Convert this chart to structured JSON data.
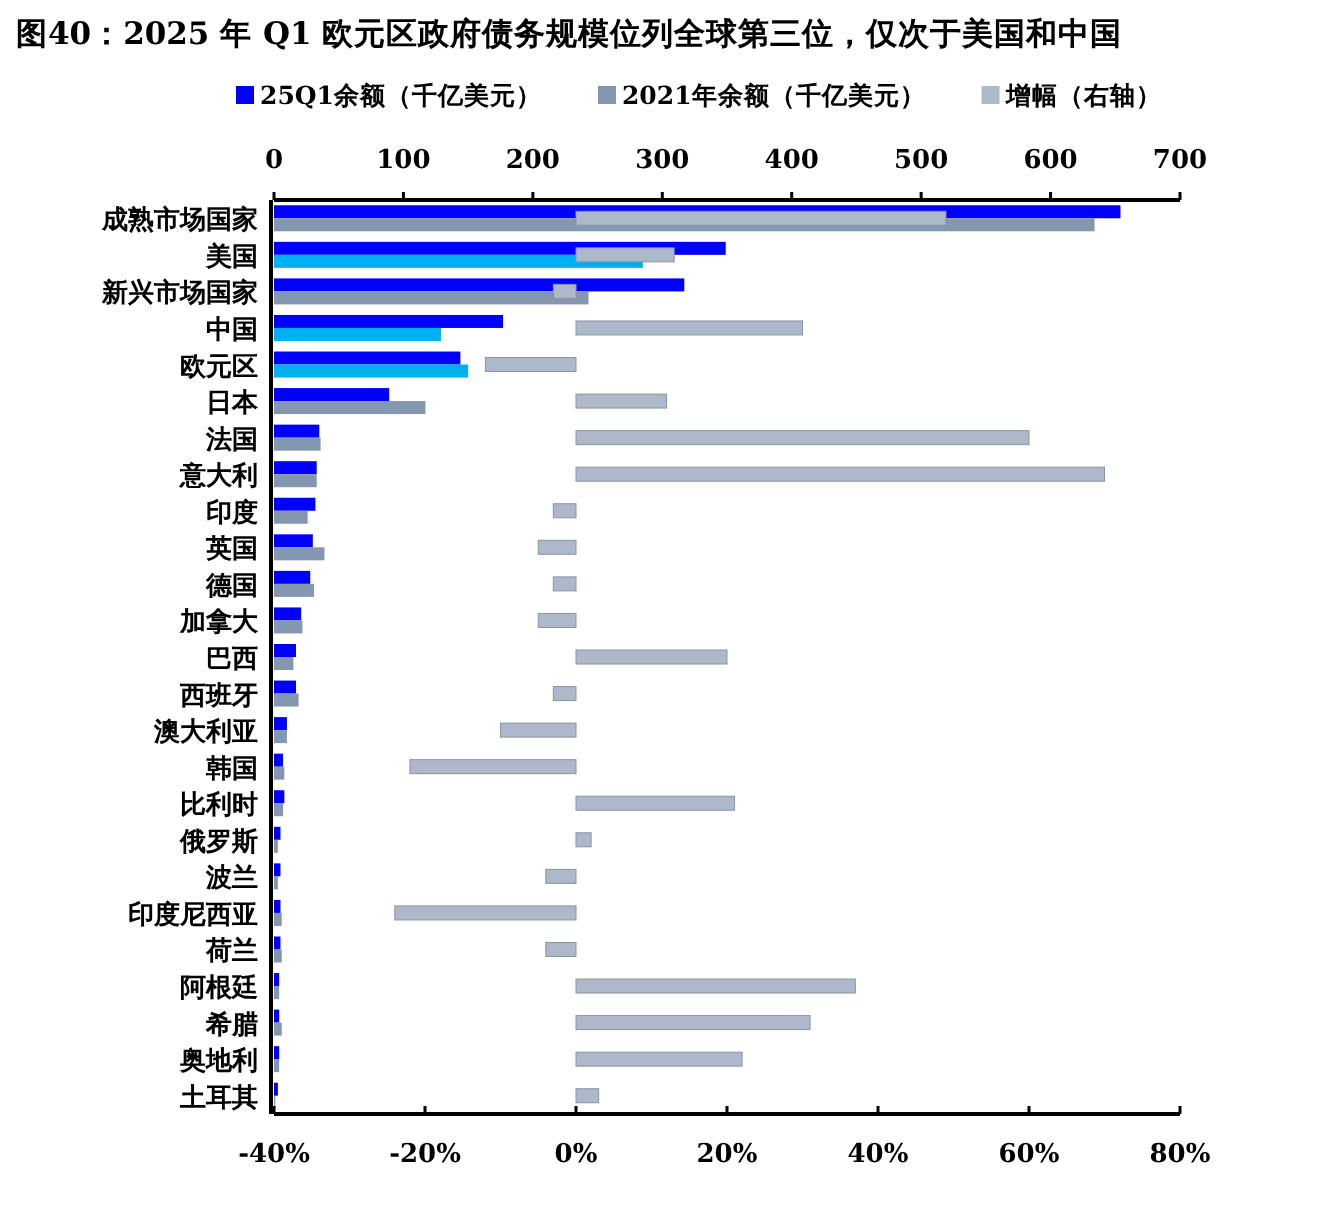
{
  "chart_data": {
    "type": "bar",
    "orientation": "horizontal",
    "title": "图40：2025 年 Q1 欧元区政府债务规模位列全球第三位，仅次于美国和中国",
    "categories": [
      "成熟市场国家",
      "美国",
      "新兴市场国家",
      "中国",
      "欧元区",
      "日本",
      "法国",
      "意大利",
      "印度",
      "英国",
      "德国",
      "加拿大",
      "巴西",
      "西班牙",
      "澳大利亚",
      "韩国",
      "比利时",
      "俄罗斯",
      "波兰",
      "印度尼西亚",
      "荷兰",
      "阿根廷",
      "希腊",
      "奥地利",
      "土耳其"
    ],
    "series": [
      {
        "name": "25Q1余额（千亿美元）",
        "color": "#0000ff",
        "axis": "x2",
        "values": [
          654,
          349,
          317,
          177,
          144,
          89,
          35,
          33,
          32,
          30,
          28,
          21,
          17,
          17,
          10,
          7,
          8,
          5,
          5,
          5,
          5,
          4,
          4,
          4,
          3
        ]
      },
      {
        "name": "2021年余额（千亿美元）",
        "color": "#8497b0",
        "axis": "x2",
        "colors": [
          "#8497b0",
          "#00b0f0",
          "#8497b0",
          "#00b0f0",
          "#00b0f0",
          "#8497b0",
          "#8497b0",
          "#8497b0",
          "#8497b0",
          "#8497b0",
          "#8497b0",
          "#8497b0",
          "#8497b0",
          "#8497b0",
          "#8497b0",
          "#8497b0",
          "#8497b0",
          "#8497b0",
          "#8497b0",
          "#8497b0",
          "#8497b0",
          "#8497b0",
          "#8497b0",
          "#8497b0",
          "#8497b0"
        ],
        "values": [
          634,
          285,
          243,
          129,
          150,
          117,
          36,
          33,
          26,
          39,
          31,
          22,
          15,
          19,
          10,
          8,
          7,
          3,
          3,
          6,
          6,
          4,
          6,
          4,
          1
        ]
      },
      {
        "name": "增幅（右轴）",
        "color": "#adb9ca",
        "values": [
          49,
          13,
          -3,
          30,
          -12,
          12,
          60,
          70,
          -3,
          -5,
          -3,
          -5,
          20,
          -3,
          -10,
          -22,
          21,
          2,
          -4,
          -24,
          -4,
          37,
          31,
          22,
          3
        ]
      }
    ],
    "xlim": [
      -40,
      80
    ],
    "xticks": [
      {
        "value": -40,
        "label": "-40%"
      },
      {
        "value": -20,
        "label": "-20%"
      },
      {
        "value": 0,
        "label": "0%"
      },
      {
        "value": 20,
        "label": "20%"
      },
      {
        "value": 40,
        "label": "40%"
      },
      {
        "value": 60,
        "label": "60%"
      },
      {
        "value": 80,
        "label": "80%"
      }
    ],
    "x2lim": [
      0,
      700
    ],
    "x2ticks": [
      0,
      100,
      200,
      300,
      400,
      500,
      600,
      700
    ],
    "legend": "top",
    "grid": false
  }
}
